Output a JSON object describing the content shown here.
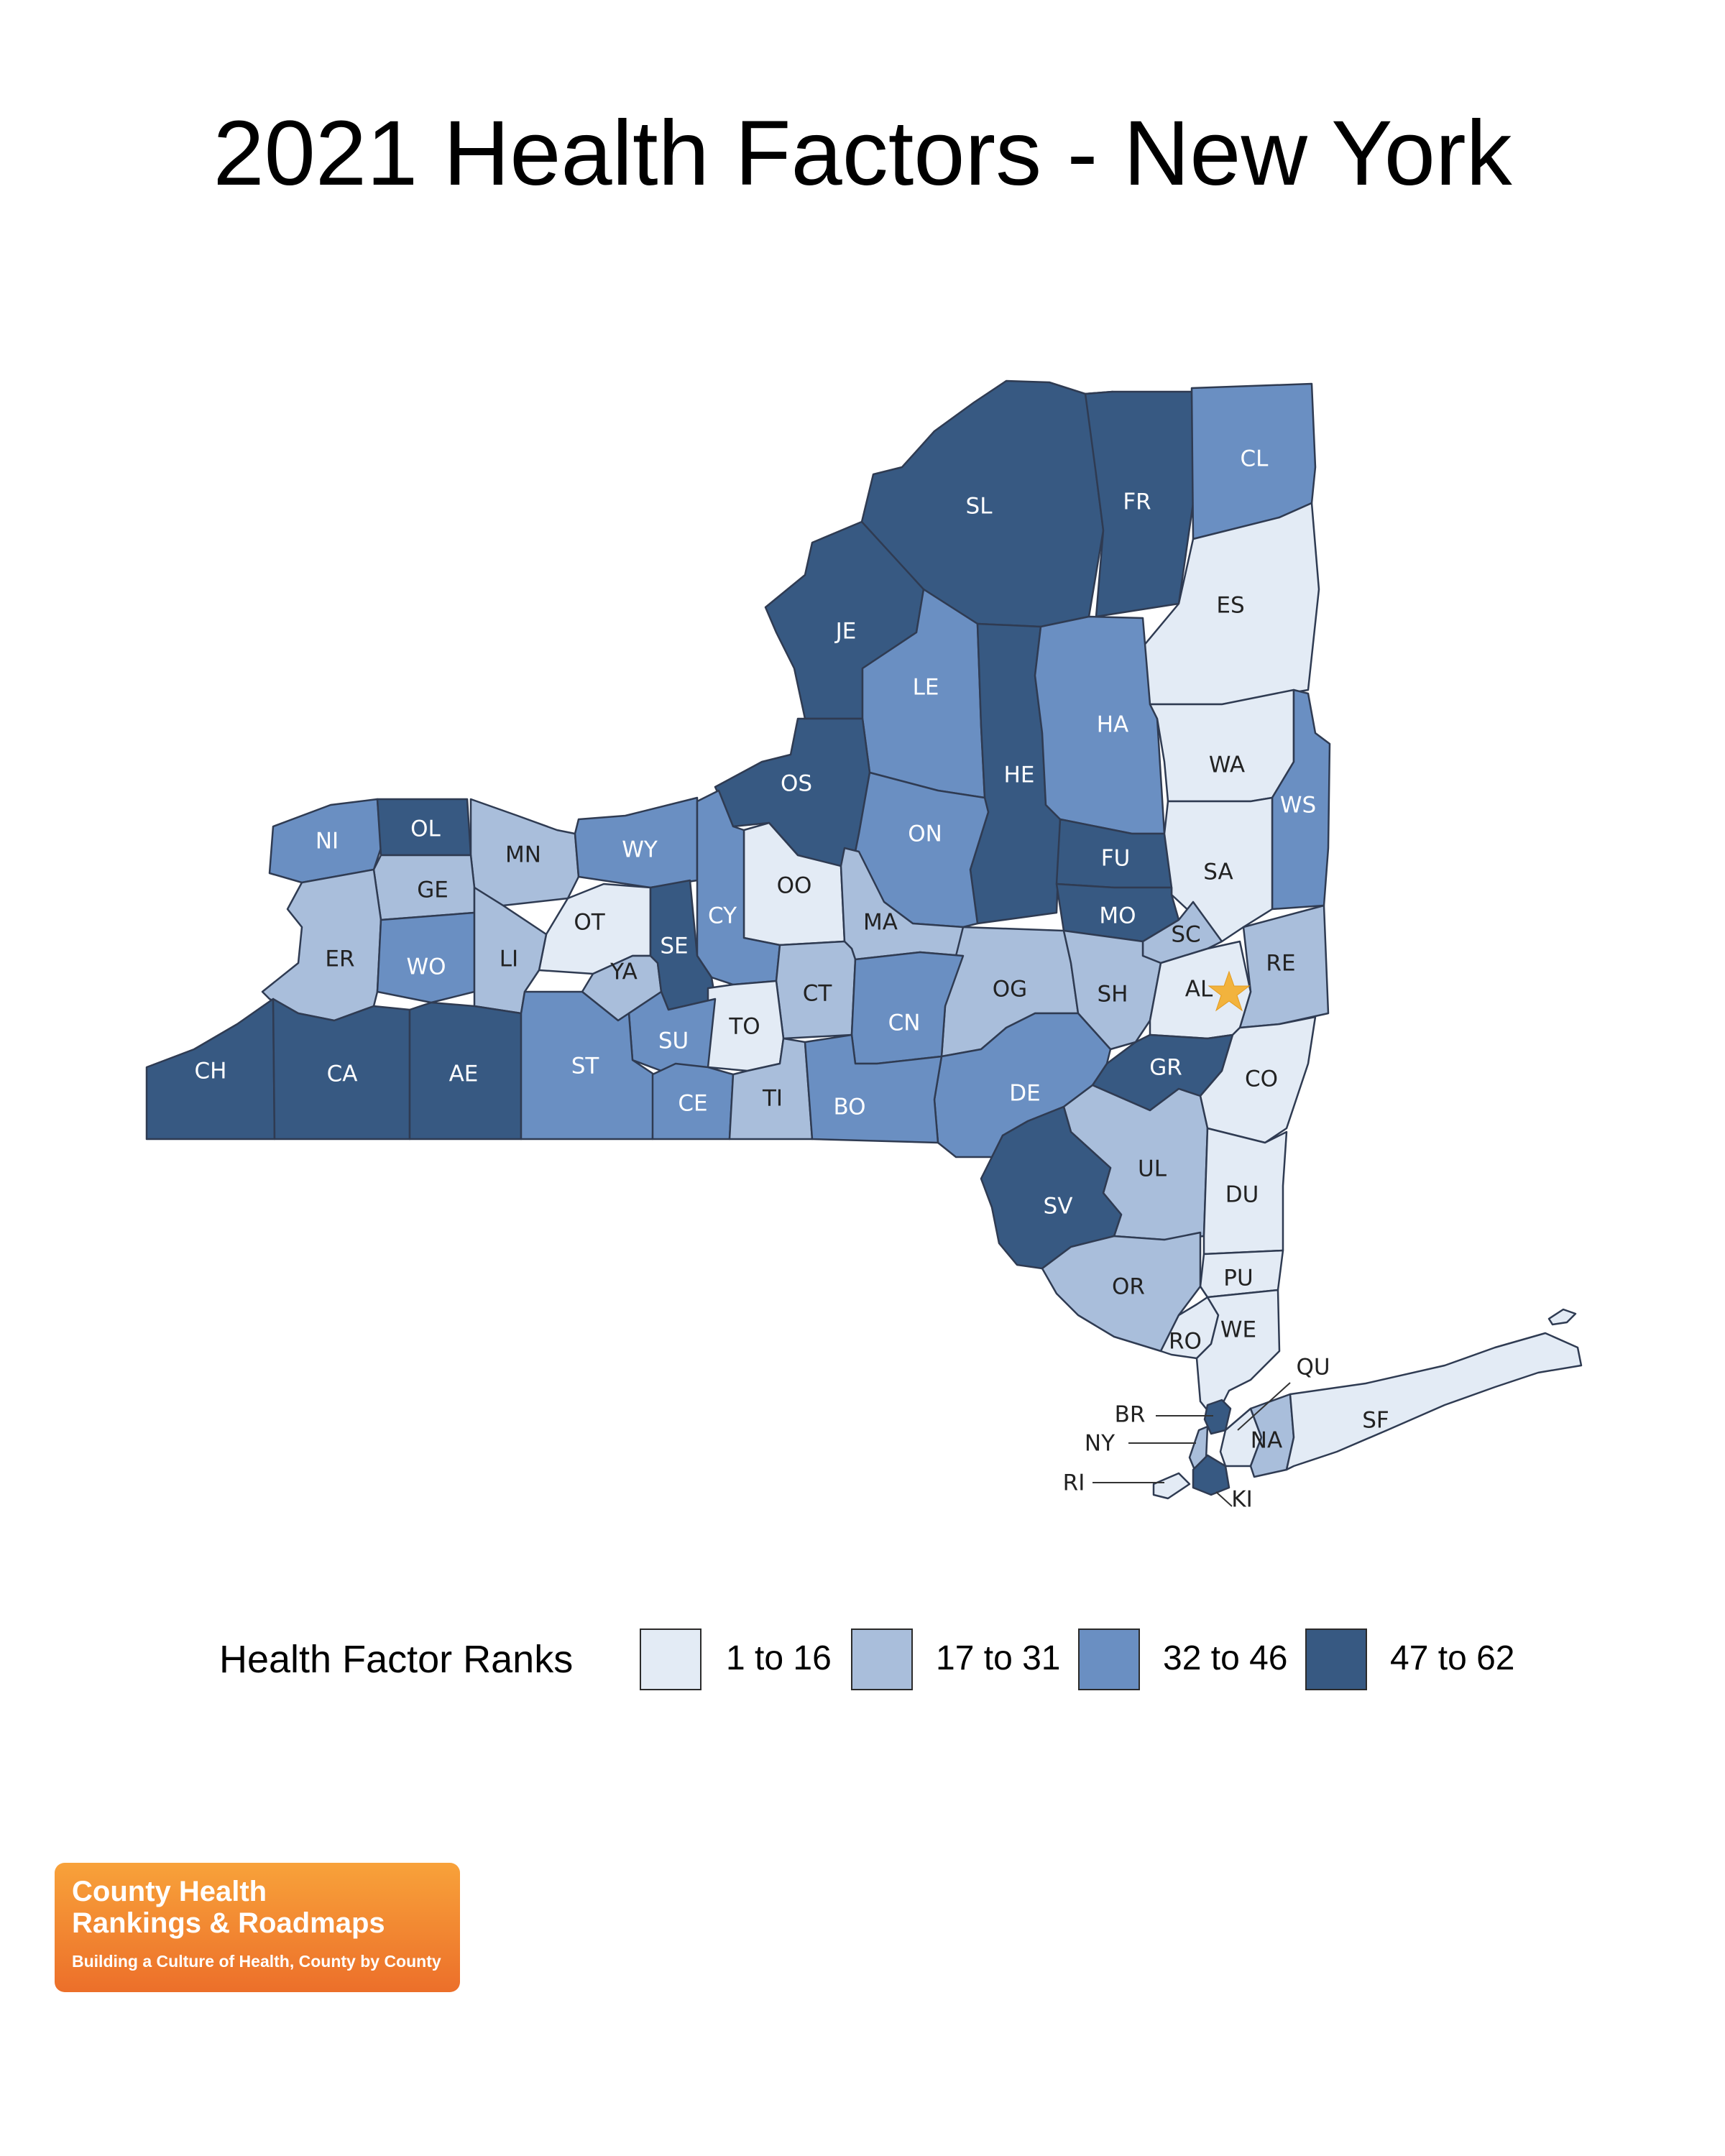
{
  "title": "2021 Health Factors - New York",
  "legend": {
    "title": "Health Factor Ranks",
    "items": [
      {
        "label": "1 to 16",
        "color": "#e3ebf5"
      },
      {
        "label": "17 to 31",
        "color": "#a9bedb"
      },
      {
        "label": "32 to 46",
        "color": "#6a8fc2"
      },
      {
        "label": "47 to 62",
        "color": "#375982"
      }
    ]
  },
  "capital_marker": "star-icon",
  "counties": [
    {
      "code": "SL",
      "tier": 4
    },
    {
      "code": "FR",
      "tier": 4
    },
    {
      "code": "CL",
      "tier": 3
    },
    {
      "code": "ES",
      "tier": 1
    },
    {
      "code": "JE",
      "tier": 4
    },
    {
      "code": "LE",
      "tier": 3
    },
    {
      "code": "HE",
      "tier": 4
    },
    {
      "code": "HA",
      "tier": 3
    },
    {
      "code": "WA",
      "tier": 1
    },
    {
      "code": "WS",
      "tier": 3
    },
    {
      "code": "OS",
      "tier": 4
    },
    {
      "code": "ON",
      "tier": 3
    },
    {
      "code": "FU",
      "tier": 4
    },
    {
      "code": "SA",
      "tier": 1
    },
    {
      "code": "NI",
      "tier": 3
    },
    {
      "code": "OL",
      "tier": 4
    },
    {
      "code": "MN",
      "tier": 2
    },
    {
      "code": "WY",
      "tier": 3
    },
    {
      "code": "GE",
      "tier": 2
    },
    {
      "code": "OO",
      "tier": 1
    },
    {
      "code": "MO",
      "tier": 4
    },
    {
      "code": "SC",
      "tier": 2
    },
    {
      "code": "OT",
      "tier": 1
    },
    {
      "code": "CY",
      "tier": 3
    },
    {
      "code": "MA",
      "tier": 2
    },
    {
      "code": "RE",
      "tier": 2
    },
    {
      "code": "ER",
      "tier": 2
    },
    {
      "code": "WO",
      "tier": 3
    },
    {
      "code": "LI",
      "tier": 2
    },
    {
      "code": "YA",
      "tier": 2
    },
    {
      "code": "SE",
      "tier": 4
    },
    {
      "code": "CT",
      "tier": 2
    },
    {
      "code": "OG",
      "tier": 2
    },
    {
      "code": "SH",
      "tier": 2
    },
    {
      "code": "AL",
      "tier": 1
    },
    {
      "code": "TO",
      "tier": 1
    },
    {
      "code": "CN",
      "tier": 3
    },
    {
      "code": "SU",
      "tier": 3
    },
    {
      "code": "CH",
      "tier": 4
    },
    {
      "code": "CA",
      "tier": 4
    },
    {
      "code": "AE",
      "tier": 4
    },
    {
      "code": "ST",
      "tier": 3
    },
    {
      "code": "GR",
      "tier": 4
    },
    {
      "code": "CO",
      "tier": 1
    },
    {
      "code": "DE",
      "tier": 3
    },
    {
      "code": "CE",
      "tier": 3
    },
    {
      "code": "TI",
      "tier": 2
    },
    {
      "code": "BO",
      "tier": 3
    },
    {
      "code": "UL",
      "tier": 2
    },
    {
      "code": "DU",
      "tier": 1
    },
    {
      "code": "SV",
      "tier": 4
    },
    {
      "code": "PU",
      "tier": 1
    },
    {
      "code": "OR",
      "tier": 2
    },
    {
      "code": "RO",
      "tier": 1
    },
    {
      "code": "WE",
      "tier": 1
    },
    {
      "code": "QU",
      "tier": 1
    },
    {
      "code": "BR",
      "tier": 4
    },
    {
      "code": "NY",
      "tier": 2
    },
    {
      "code": "NA",
      "tier": 2
    },
    {
      "code": "SF",
      "tier": 1
    },
    {
      "code": "RI",
      "tier": 1
    },
    {
      "code": "KI",
      "tier": 4
    }
  ],
  "logo": {
    "line1": "County Health",
    "line2": "Rankings & Roadmaps",
    "tagline": "Building a Culture of Health, County by County"
  }
}
